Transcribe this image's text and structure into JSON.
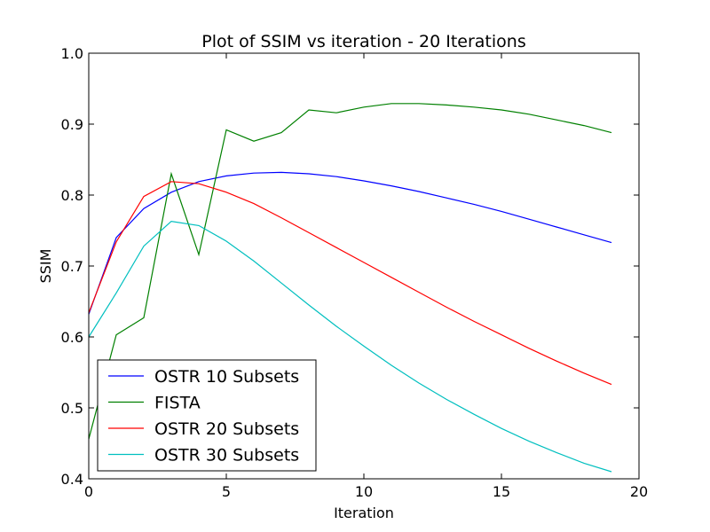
{
  "chart_data": {
    "type": "line",
    "title": "Plot of SSIM vs iteration - 20 Iterations",
    "xlabel": "Iteration",
    "ylabel": "SSIM",
    "xlim": [
      0,
      20
    ],
    "ylim": [
      0.4,
      1.0
    ],
    "xticks": [
      0,
      5,
      10,
      15,
      20
    ],
    "xtick_labels": [
      "0",
      "5",
      "10",
      "15",
      "20"
    ],
    "yticks": [
      0.4,
      0.5,
      0.6,
      0.7,
      0.8,
      0.9,
      1.0
    ],
    "ytick_labels": [
      "0.4",
      "0.5",
      "0.6",
      "0.7",
      "0.8",
      "0.9",
      "1.0"
    ],
    "grid": false,
    "legend_position": "lower-left",
    "x": [
      0,
      1,
      2,
      3,
      4,
      5,
      6,
      7,
      8,
      9,
      10,
      11,
      12,
      13,
      14,
      15,
      16,
      17,
      18,
      19
    ],
    "series": [
      {
        "name": "OSTR 10 Subsets",
        "color": "#0000ff",
        "values": [
          0.632,
          0.74,
          0.781,
          0.804,
          0.819,
          0.827,
          0.831,
          0.832,
          0.83,
          0.826,
          0.82,
          0.813,
          0.805,
          0.796,
          0.787,
          0.777,
          0.766,
          0.755,
          0.744,
          0.733
        ]
      },
      {
        "name": "FISTA",
        "color": "#008000",
        "values": [
          0.456,
          0.603,
          0.627,
          0.83,
          0.716,
          0.892,
          0.876,
          0.888,
          0.92,
          0.916,
          0.924,
          0.929,
          0.929,
          0.927,
          0.924,
          0.92,
          0.914,
          0.906,
          0.898,
          0.888
        ]
      },
      {
        "name": "OSTR 20 Subsets",
        "color": "#ff0000",
        "values": [
          0.634,
          0.734,
          0.798,
          0.819,
          0.816,
          0.804,
          0.788,
          0.768,
          0.747,
          0.726,
          0.705,
          0.684,
          0.663,
          0.642,
          0.622,
          0.603,
          0.584,
          0.566,
          0.549,
          0.533
        ]
      },
      {
        "name": "OSTR 30 Subsets",
        "color": "#00bfbf",
        "values": [
          0.6,
          0.662,
          0.728,
          0.763,
          0.757,
          0.735,
          0.707,
          0.676,
          0.645,
          0.615,
          0.587,
          0.56,
          0.535,
          0.512,
          0.491,
          0.471,
          0.453,
          0.437,
          0.422,
          0.41
        ]
      }
    ]
  }
}
